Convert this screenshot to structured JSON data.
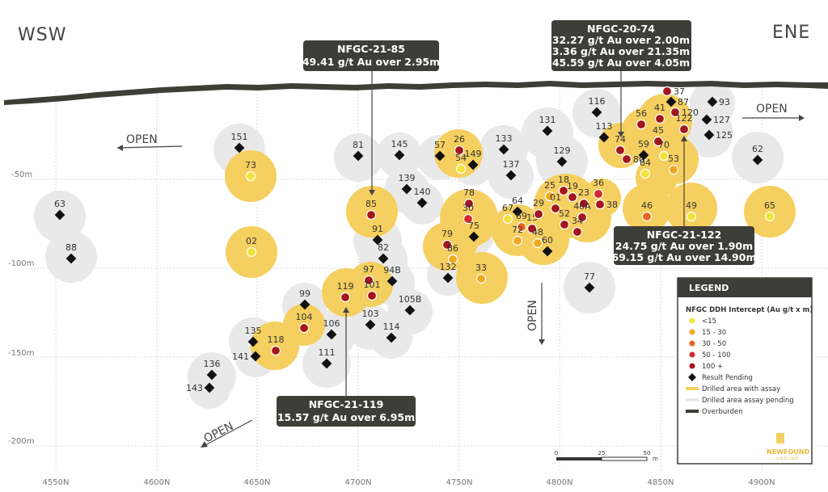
{
  "labels": {
    "wsw": "WSW",
    "ene": "ENE",
    "open": "OPEN"
  },
  "axes": {
    "depths": [
      "-50m",
      "-100m",
      "-150m",
      "-200m"
    ],
    "eastings": [
      "4550N",
      "4600N",
      "4650N",
      "4700N",
      "4750N",
      "4800N",
      "4850N",
      "4900N"
    ]
  },
  "callouts": {
    "c85": {
      "title": "NFGC-21-85",
      "line1": "49.41 g/t Au over 2.95m"
    },
    "c74": {
      "title": "NFGC-20-74",
      "line1": "32.27 g/t Au over 2.00m",
      "line2": "3.36 g/t Au over 21.35m",
      "line3": "45.59 g/t Au over 4.05m"
    },
    "c122": {
      "title": "NFGC-21-122",
      "line1": "24.75 g/t Au over 1.90m",
      "line2": "69.15  g/t Au over 14.90m"
    },
    "c119": {
      "title": "NFGC-21-119",
      "line1": "15.57 g/t Au over 6.95m"
    }
  },
  "scale": {
    "ticks": [
      "0",
      "25",
      "50"
    ],
    "unit": "m"
  },
  "legend": {
    "title": "LEGEND",
    "subtitle": "NFGC DDH Intercept (Au g/t x m)",
    "items": [
      {
        "label": "<15",
        "kind": "dot",
        "color": "#f3e33b"
      },
      {
        "label": "15 - 30",
        "kind": "dot",
        "color": "#f0a91f"
      },
      {
        "label": "30 - 50",
        "kind": "dot",
        "color": "#e8651f"
      },
      {
        "label": "50 - 100",
        "kind": "dot",
        "color": "#d22b2b"
      },
      {
        "label": "100 +",
        "kind": "dot",
        "color": "#a3161c"
      },
      {
        "label": "Result Pending",
        "kind": "diamond",
        "color": "#111111"
      },
      {
        "label": "Drilled area with assay",
        "kind": "bar",
        "color": "#f5cf5f"
      },
      {
        "label": "Drilled area assay pending",
        "kind": "bar",
        "color": "#e9e9e9"
      },
      {
        "label": "Overburden",
        "kind": "bar",
        "color": "#3e3e38"
      }
    ],
    "logo_line1": "NEWFOUND",
    "logo_line2": "GOLD CORP"
  },
  "holes": [
    {
      "id": "151",
      "type": "pending"
    },
    {
      "id": "73",
      "type": "<15"
    },
    {
      "id": "63",
      "type": "pending"
    },
    {
      "id": "88",
      "type": "pending"
    },
    {
      "id": "02",
      "type": "<15"
    },
    {
      "id": "81",
      "type": "pending"
    },
    {
      "id": "145",
      "type": "pending"
    },
    {
      "id": "57",
      "type": "pending"
    },
    {
      "id": "26",
      "type": "100+"
    },
    {
      "id": "149",
      "type": "pending"
    },
    {
      "id": "54",
      "type": "<15"
    },
    {
      "id": "133",
      "type": "pending"
    },
    {
      "id": "131",
      "type": "pending"
    },
    {
      "id": "137",
      "type": "pending"
    },
    {
      "id": "129",
      "type": "pending"
    },
    {
      "id": "116",
      "type": "pending"
    },
    {
      "id": "113",
      "type": "pending"
    },
    {
      "id": "139",
      "type": "pending"
    },
    {
      "id": "140",
      "type": "pending"
    },
    {
      "id": "85",
      "type": "100+"
    },
    {
      "id": "91",
      "type": "pending"
    },
    {
      "id": "82",
      "type": "pending"
    },
    {
      "id": "78",
      "type": "100+"
    },
    {
      "id": "30",
      "type": "50-100"
    },
    {
      "id": "75",
      "type": "pending"
    },
    {
      "id": "79",
      "type": "100+"
    },
    {
      "id": "86",
      "type": "15-30"
    },
    {
      "id": "132",
      "type": "pending"
    },
    {
      "id": "33",
      "type": "15-30"
    },
    {
      "id": "97",
      "type": "100+"
    },
    {
      "id": "94B",
      "type": "pending"
    },
    {
      "id": "101",
      "type": "100+"
    },
    {
      "id": "119",
      "type": "100+"
    },
    {
      "id": "105B",
      "type": "pending"
    },
    {
      "id": "103",
      "type": "pending"
    },
    {
      "id": "114",
      "type": "pending"
    },
    {
      "id": "99",
      "type": "pending"
    },
    {
      "id": "104",
      "type": "100+"
    },
    {
      "id": "106",
      "type": "pending"
    },
    {
      "id": "111",
      "type": "pending"
    },
    {
      "id": "135",
      "type": "pending"
    },
    {
      "id": "118",
      "type": "100+"
    },
    {
      "id": "141",
      "type": "pending"
    },
    {
      "id": "136",
      "type": "pending"
    },
    {
      "id": "143",
      "type": "pending"
    },
    {
      "id": "64",
      "type": "pending"
    },
    {
      "id": "67",
      "type": "<15"
    },
    {
      "id": "69",
      "type": "30-50"
    },
    {
      "id": "15",
      "type": "100+"
    },
    {
      "id": "72",
      "type": "15-30"
    },
    {
      "id": "48",
      "type": "15-30"
    },
    {
      "id": "60",
      "type": "pending"
    },
    {
      "id": "25",
      "type": "15-30"
    },
    {
      "id": "18",
      "type": "100+"
    },
    {
      "id": "29",
      "type": "100+"
    },
    {
      "id": "01",
      "type": "100+"
    },
    {
      "id": "52",
      "type": "100+"
    },
    {
      "id": "19",
      "type": "100+"
    },
    {
      "id": "23",
      "type": "100+"
    },
    {
      "id": "40A",
      "type": "100+"
    },
    {
      "id": "34",
      "type": "100+"
    },
    {
      "id": "36",
      "type": "50-100"
    },
    {
      "id": "38",
      "type": "100+"
    },
    {
      "id": "46",
      "type": "30-50"
    },
    {
      "id": "49",
      "type": "<15"
    },
    {
      "id": "65",
      "type": "<15"
    },
    {
      "id": "62",
      "type": "pending"
    },
    {
      "id": "77",
      "type": "pending"
    },
    {
      "id": "74",
      "type": "100+"
    },
    {
      "id": "80",
      "type": "100+"
    },
    {
      "id": "59",
      "type": "pending"
    },
    {
      "id": "84",
      "type": "<15"
    },
    {
      "id": "56",
      "type": "100+"
    },
    {
      "id": "41",
      "type": "100+"
    },
    {
      "id": "45",
      "type": "100+"
    },
    {
      "id": "70",
      "type": "<15"
    },
    {
      "id": "53",
      "type": "15-30"
    },
    {
      "id": "37",
      "type": "100+"
    },
    {
      "id": "87",
      "type": "pending"
    },
    {
      "id": "120",
      "type": "100+"
    },
    {
      "id": "122",
      "type": "100+"
    },
    {
      "id": "93",
      "type": "pending"
    },
    {
      "id": "127",
      "type": "pending"
    },
    {
      "id": "125",
      "type": "pending"
    }
  ]
}
